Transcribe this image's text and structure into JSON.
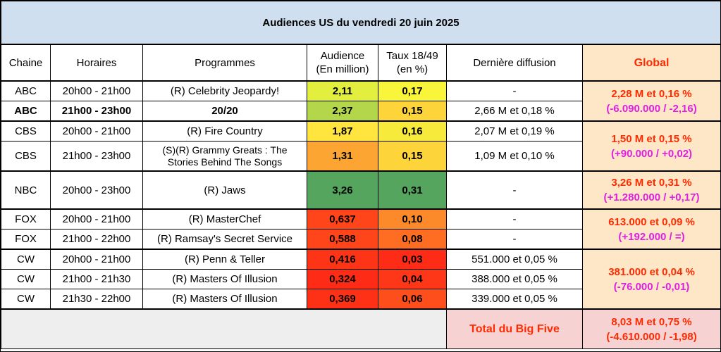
{
  "title": "Audiences US du vendredi 20 juin 2025",
  "headers": {
    "chaine": "Chaine",
    "horaires": "Horaires",
    "programmes": "Programmes",
    "audience_l1": "Audience",
    "audience_l2": "(En million)",
    "taux_l1": "Taux 18/49",
    "taux_l2": "(en %)",
    "derniere": "Dernière diffusion",
    "global": "Global"
  },
  "rows": [
    {
      "chaine": "ABC",
      "horaires": "20h00 - 21h00",
      "programme": "(R) Celebrity Jeopardy!",
      "audience": "2,11",
      "taux": "0,17",
      "derniere": "-",
      "audience_color": "#e3ef3f",
      "taux_color": "#f9f53a"
    },
    {
      "chaine": "ABC",
      "horaires": "21h00 - 23h00",
      "programme": "20/20",
      "audience": "2,37",
      "taux": "0,15",
      "derniere": "2,66 M et 0,18 %",
      "audience_color": "#b4d64b",
      "taux_color": "#fdd43a"
    },
    {
      "chaine": "CBS",
      "horaires": "20h00 - 21h00",
      "programme": "(R) Fire Country",
      "audience": "1,87",
      "taux": "0,16",
      "derniere": "2,07 M et 0,19 %",
      "audience_color": "#ffe53d",
      "taux_color": "#f8ea3b"
    },
    {
      "chaine": "CBS",
      "horaires": "21h00 - 23h00",
      "programme_l1": "(S)(R) Grammy Greats : The",
      "programme_l2": "Stories Behind The Songs",
      "audience": "1,31",
      "taux": "0,15",
      "derniere": "1,09 M et 0,10 %",
      "audience_color": "#fca533",
      "taux_color": "#fdd43a"
    },
    {
      "chaine": "NBC",
      "horaires": "20h00 - 23h00",
      "programme": "(R) Jaws",
      "audience": "3,26",
      "taux": "0,31",
      "derniere": "-",
      "audience_color": "#55a55e",
      "taux_color": "#55a55e"
    },
    {
      "chaine": "FOX",
      "horaires": "20h00 - 21h00",
      "programme": "(R) MasterChef",
      "audience": "0,637",
      "taux": "0,10",
      "derniere": "-",
      "audience_color": "#ff4519",
      "taux_color": "#fd8a2a"
    },
    {
      "chaine": "FOX",
      "horaires": "21h00 - 22h00",
      "programme": "(R) Ramsay's Secret Service",
      "audience": "0,588",
      "taux": "0,08",
      "derniere": "-",
      "audience_color": "#ff4519",
      "taux_color": "#fe6d22"
    },
    {
      "chaine": "CW",
      "horaires": "20h00 - 21h00",
      "programme": "(R) Penn & Teller",
      "audience": "0,416",
      "taux": "0,03",
      "derniere": "551.000 et 0,05 %",
      "audience_color": "#fe3417",
      "taux_color": "#fe2c16"
    },
    {
      "chaine": "CW",
      "horaires": "21h00 - 21h30",
      "programme": "(R) Masters Of Illusion",
      "audience": "0,324",
      "taux": "0,04",
      "derniere": "388.000 et 0,05 %",
      "audience_color": "#fe2c16",
      "taux_color": "#fe3718"
    },
    {
      "chaine": "CW",
      "horaires": "21h30 - 22h00",
      "programme": "(R) Masters Of Illusion",
      "audience": "0,369",
      "taux": "0,06",
      "derniere": "339.000 et 0,05 %",
      "audience_color": "#fe3117",
      "taux_color": "#fe4e1c"
    }
  ],
  "global": {
    "abc_l1": "2,28 M et 0,16 %",
    "abc_l2": "(-6.090.000 / -2,16)",
    "cbs_l1": "1,50 M et 0,15 %",
    "cbs_l2": "(+90.000 / +0,02)",
    "nbc_l1": "3,26 M et 0,31 %",
    "nbc_l2": "(+1.280.000 / +0,17)",
    "fox_l1": "613.000 et 0,09 %",
    "fox_l2": "(+192.000 / =)",
    "cw_l1": "381.000 et 0,04 %",
    "cw_l2": "(-76.000 / -0,01)"
  },
  "footer": {
    "total_label": "Total du Big Five",
    "total_l1": "8,03 M et 0,75 %",
    "total_l2": "(-4.610.000 / -1,98)"
  },
  "colors": {
    "title_bg": "#cfdff0",
    "global_bg": "#fde7c7",
    "total_bg": "#f6d2d2",
    "red_text": "#ff2a00",
    "magenta_text": "#e020e0"
  }
}
